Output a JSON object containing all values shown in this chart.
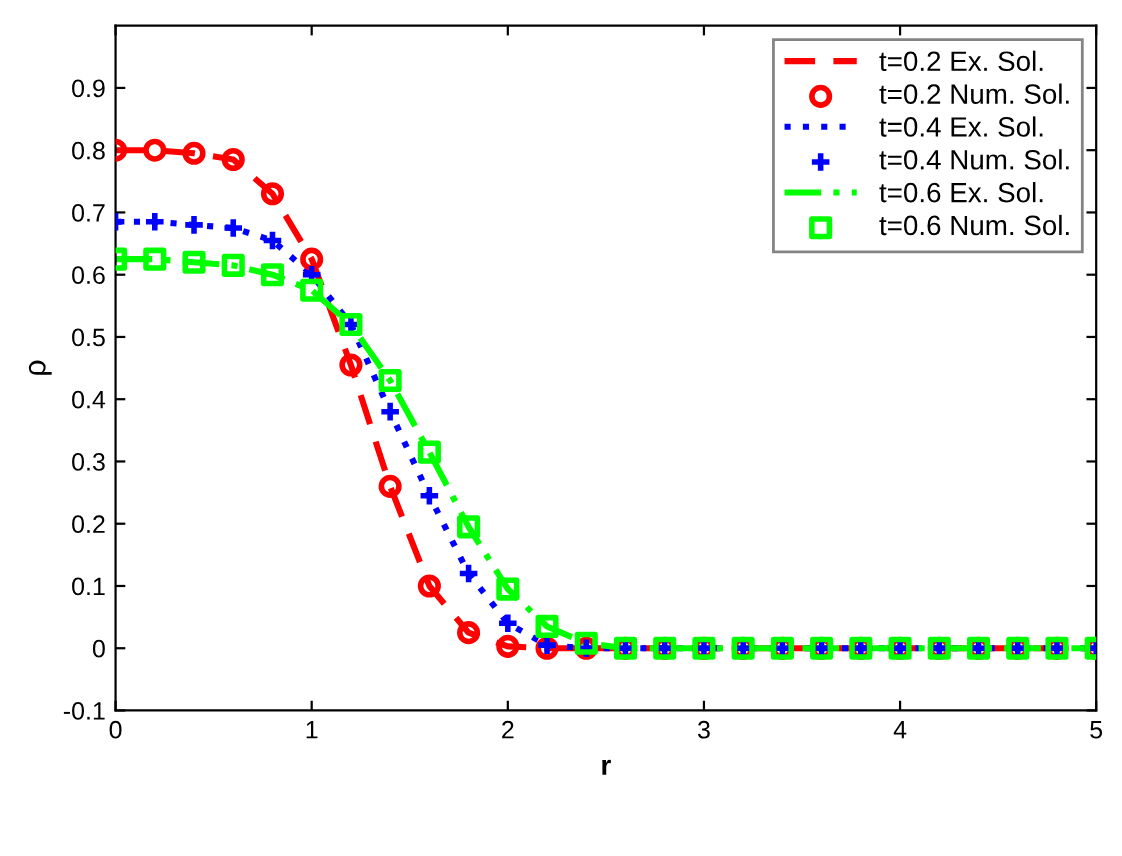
{
  "chart_data": {
    "type": "line",
    "xlabel": "r",
    "ylabel": "ρ",
    "xlim": [
      0,
      5
    ],
    "xticks": [
      0,
      1,
      2,
      3,
      4,
      5
    ],
    "ylim": [
      -0.1,
      1.0
    ],
    "yticks": [
      -0.1,
      0,
      0.1,
      0.2,
      0.3,
      0.4,
      0.5,
      0.6,
      0.7,
      0.8,
      0.9
    ],
    "legend": "top right",
    "grid": false,
    "x": [
      0,
      0.2,
      0.4,
      0.6,
      0.8,
      1.0,
      1.2,
      1.4,
      1.6,
      1.8,
      2.0,
      2.2,
      2.4,
      2.6,
      2.8,
      3.0,
      3.2,
      3.4,
      3.6,
      3.8,
      4.0,
      4.2,
      4.4,
      4.6,
      4.8,
      5.0
    ],
    "series": [
      {
        "name": "t=0.2 Ex. Sol.",
        "line_style": "dashed",
        "marker": "none",
        "color": "#ff0000",
        "values": [
          0.8,
          0.8,
          0.795,
          0.785,
          0.73,
          0.625,
          0.455,
          0.26,
          0.1,
          0.025,
          0.003,
          0,
          0,
          0,
          0,
          0,
          0,
          0,
          0,
          0,
          0,
          0,
          0,
          0,
          0,
          0
        ]
      },
      {
        "name": "t=0.2 Num. Sol.",
        "type": "scatter",
        "marker": "circle",
        "color": "#ff0000",
        "values": [
          0.8,
          0.8,
          0.795,
          0.785,
          0.73,
          0.625,
          0.455,
          0.26,
          0.1,
          0.025,
          0.003,
          0,
          0,
          0,
          0,
          0,
          0,
          0,
          0,
          0,
          0,
          0,
          0,
          0,
          0,
          0
        ]
      },
      {
        "name": "t=0.4 Ex. Sol.",
        "line_style": "dotted",
        "marker": "none",
        "color": "#0000ff",
        "values": [
          0.685,
          0.685,
          0.68,
          0.675,
          0.655,
          0.6,
          0.52,
          0.38,
          0.245,
          0.12,
          0.04,
          0.005,
          0,
          0,
          0,
          0,
          0,
          0,
          0,
          0,
          0,
          0,
          0,
          0,
          0,
          0
        ]
      },
      {
        "name": "t=0.4 Num. Sol.",
        "type": "scatter",
        "marker": "cross",
        "color": "#0000ff",
        "values": [
          0.685,
          0.685,
          0.68,
          0.675,
          0.655,
          0.6,
          0.52,
          0.38,
          0.245,
          0.12,
          0.04,
          0.005,
          0,
          0,
          0,
          0,
          0,
          0,
          0,
          0,
          0,
          0,
          0,
          0,
          0,
          0
        ]
      },
      {
        "name": "t=0.6 Ex. Sol.",
        "line_style": "dashdot",
        "marker": "none",
        "color": "#00ff00",
        "values": [
          0.625,
          0.625,
          0.62,
          0.615,
          0.6,
          0.575,
          0.52,
          0.43,
          0.315,
          0.195,
          0.095,
          0.035,
          0.008,
          0,
          0,
          0,
          0,
          0,
          0,
          0,
          0,
          0,
          0,
          0,
          0,
          0
        ]
      },
      {
        "name": "t=0.6 Num. Sol.",
        "type": "scatter",
        "marker": "square",
        "color": "#00ff00",
        "values": [
          0.625,
          0.625,
          0.62,
          0.615,
          0.6,
          0.575,
          0.52,
          0.43,
          0.315,
          0.195,
          0.095,
          0.035,
          0.008,
          0,
          0,
          0,
          0,
          0,
          0,
          0,
          0,
          0,
          0,
          0,
          0,
          0
        ]
      }
    ]
  }
}
